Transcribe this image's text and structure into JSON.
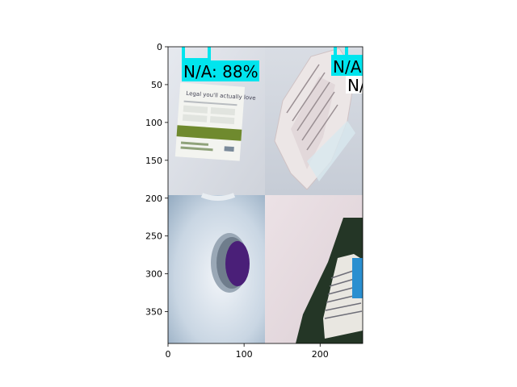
{
  "figure": {
    "xlim": [
      0,
      256
    ],
    "ylim": [
      392,
      0
    ],
    "x_ticks": [
      "0",
      "100",
      "200"
    ],
    "y_ticks": [
      "0",
      "50",
      "100",
      "150",
      "200",
      "250",
      "300",
      "350"
    ],
    "detection_color": "#00e5ee",
    "detections": [
      {
        "label": "N/A: 88%"
      },
      {
        "label": "N/A"
      },
      {
        "label": "N/"
      }
    ],
    "panels": [
      {
        "name": "paper-leaflet",
        "leaflet_heading": "Legal you'll actually love"
      },
      {
        "name": "crumpled-paper"
      },
      {
        "name": "bottle-cap-purple",
        "colors": {
          "cap": "#4a1f78"
        }
      },
      {
        "name": "glass-bottle-label",
        "colors": {
          "bottle": "#243626",
          "label_edge": "#2a8fd0"
        }
      }
    ]
  }
}
